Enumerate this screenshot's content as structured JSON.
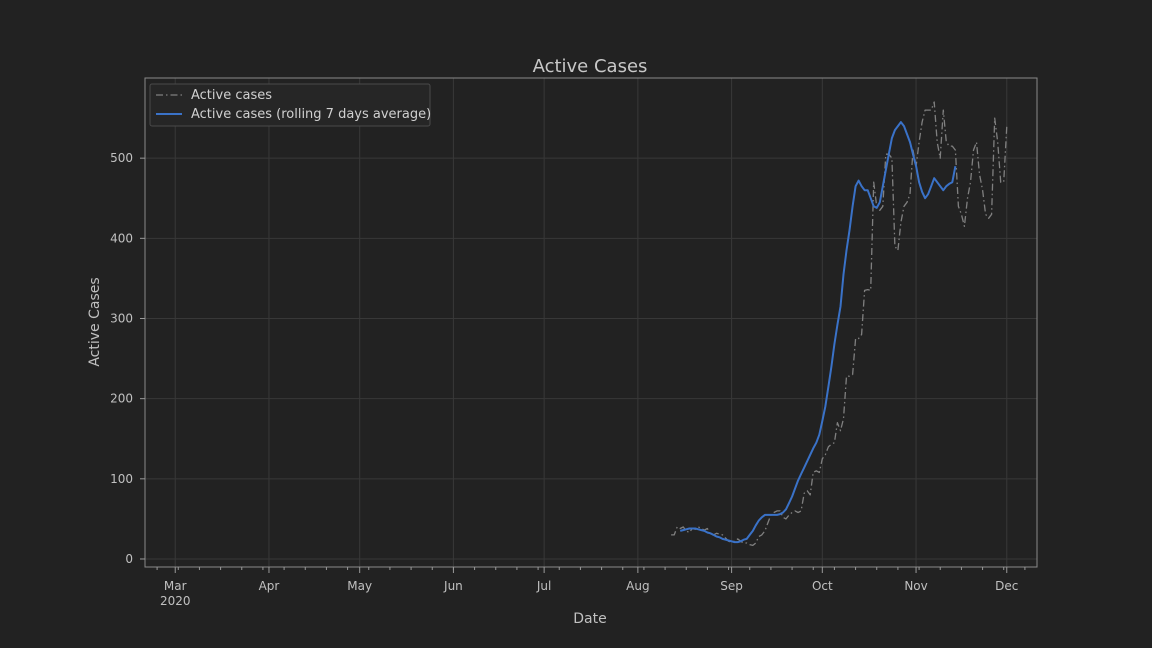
{
  "chart_data": {
    "type": "line",
    "title": "Active Cases",
    "xlabel": "Date",
    "ylabel": "Active Cases",
    "ylim": [
      -10,
      600
    ],
    "xlim": [
      "2020-02-20",
      "2020-12-11"
    ],
    "yticks": [
      0,
      100,
      200,
      300,
      400,
      500
    ],
    "xticks": [
      {
        "date": "2020-03-01",
        "label": "Mar",
        "sublabel": "2020"
      },
      {
        "date": "2020-04-01",
        "label": "Apr",
        "sublabel": ""
      },
      {
        "date": "2020-05-01",
        "label": "May",
        "sublabel": ""
      },
      {
        "date": "2020-06-01",
        "label": "Jun",
        "sublabel": ""
      },
      {
        "date": "2020-07-01",
        "label": "Jul",
        "sublabel": ""
      },
      {
        "date": "2020-08-01",
        "label": "Aug",
        "sublabel": ""
      },
      {
        "date": "2020-09-01",
        "label": "Sep",
        "sublabel": ""
      },
      {
        "date": "2020-10-01",
        "label": "Oct",
        "sublabel": ""
      },
      {
        "date": "2020-11-01",
        "label": "Nov",
        "sublabel": ""
      },
      {
        "date": "2020-12-01",
        "label": "Dec",
        "sublabel": ""
      }
    ],
    "grid": true,
    "legend_position": "top-left",
    "series": [
      {
        "name": "Active cases",
        "color": "#808080",
        "style": "dashdot",
        "start_date": "2020-08-12",
        "values": [
          30,
          30,
          40,
          38,
          40,
          35,
          33,
          38,
          37,
          40,
          38,
          36,
          38,
          30,
          30,
          32,
          31,
          30,
          26,
          22,
          21,
          22,
          25,
          22,
          20,
          20,
          18,
          17,
          20,
          28,
          30,
          35,
          45,
          55,
          58,
          60,
          60,
          52,
          50,
          55,
          58,
          60,
          58,
          60,
          82,
          85,
          80,
          108,
          110,
          108,
          125,
          130,
          140,
          143,
          145,
          170,
          160,
          175,
          228,
          228,
          230,
          275,
          275,
          280,
          335,
          336,
          335,
          470,
          440,
          435,
          440,
          505,
          505,
          500,
          390,
          385,
          420,
          440,
          445,
          455,
          510,
          490,
          520,
          545,
          560,
          560,
          560,
          570,
          520,
          500,
          560,
          520,
          515,
          515,
          510,
          440,
          430,
          415,
          450,
          470,
          510,
          520,
          480,
          460,
          430,
          425,
          430,
          550,
          520,
          470,
          470,
          540
        ]
      },
      {
        "name": "Active cases (rolling 7 days average)",
        "color": "#3a72c8",
        "style": "solid",
        "start_date": "2020-08-15",
        "values": [
          35,
          36,
          37,
          38,
          38,
          38,
          37,
          36,
          35,
          33,
          32,
          30,
          28,
          27,
          25,
          24,
          23,
          22,
          21,
          21,
          22,
          24,
          25,
          30,
          35,
          42,
          48,
          52,
          55,
          55,
          55,
          55,
          55,
          56,
          58,
          62,
          70,
          78,
          88,
          98,
          106,
          114,
          122,
          130,
          138,
          145,
          155,
          172,
          190,
          215,
          240,
          268,
          292,
          315,
          355,
          385,
          410,
          440,
          465,
          472,
          465,
          460,
          460,
          450,
          440,
          438,
          445,
          465,
          485,
          505,
          525,
          535,
          540,
          545,
          540,
          530,
          520,
          505,
          490,
          470,
          458,
          450,
          455,
          465,
          475,
          470,
          465,
          460,
          465,
          468,
          470,
          490
        ]
      }
    ]
  }
}
